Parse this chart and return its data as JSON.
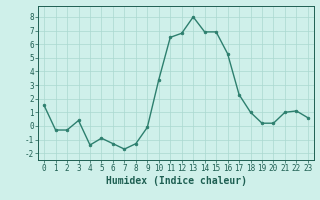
{
  "x": [
    0,
    1,
    2,
    3,
    4,
    5,
    6,
    7,
    8,
    9,
    10,
    11,
    12,
    13,
    14,
    15,
    16,
    17,
    18,
    19,
    20,
    21,
    22,
    23
  ],
  "y": [
    1.5,
    -0.3,
    -0.3,
    0.4,
    -1.4,
    -0.9,
    -1.3,
    -1.7,
    -1.3,
    -0.1,
    3.4,
    6.5,
    6.8,
    8.0,
    6.9,
    6.9,
    5.3,
    2.3,
    1.0,
    0.2,
    0.2,
    1.0,
    1.1,
    0.6
  ],
  "line_color": "#2d7f6e",
  "marker": "o",
  "markersize": 2.0,
  "linewidth": 1.0,
  "bg_color": "#cff0ea",
  "grid_color": "#aad8d0",
  "xlabel": "Humidex (Indice chaleur)",
  "xlabel_fontsize": 7,
  "ylabel_ticks": [
    -2,
    -1,
    0,
    1,
    2,
    3,
    4,
    5,
    6,
    7,
    8
  ],
  "xtick_labels": [
    "0",
    "1",
    "2",
    "3",
    "4",
    "5",
    "6",
    "7",
    "8",
    "9",
    "10",
    "11",
    "12",
    "13",
    "14",
    "15",
    "16",
    "17",
    "18",
    "19",
    "20",
    "21",
    "22",
    "23"
  ],
  "ylim": [
    -2.5,
    8.8
  ],
  "xlim": [
    -0.5,
    23.5
  ],
  "tick_fontsize": 5.5,
  "text_color": "#1e5f52"
}
